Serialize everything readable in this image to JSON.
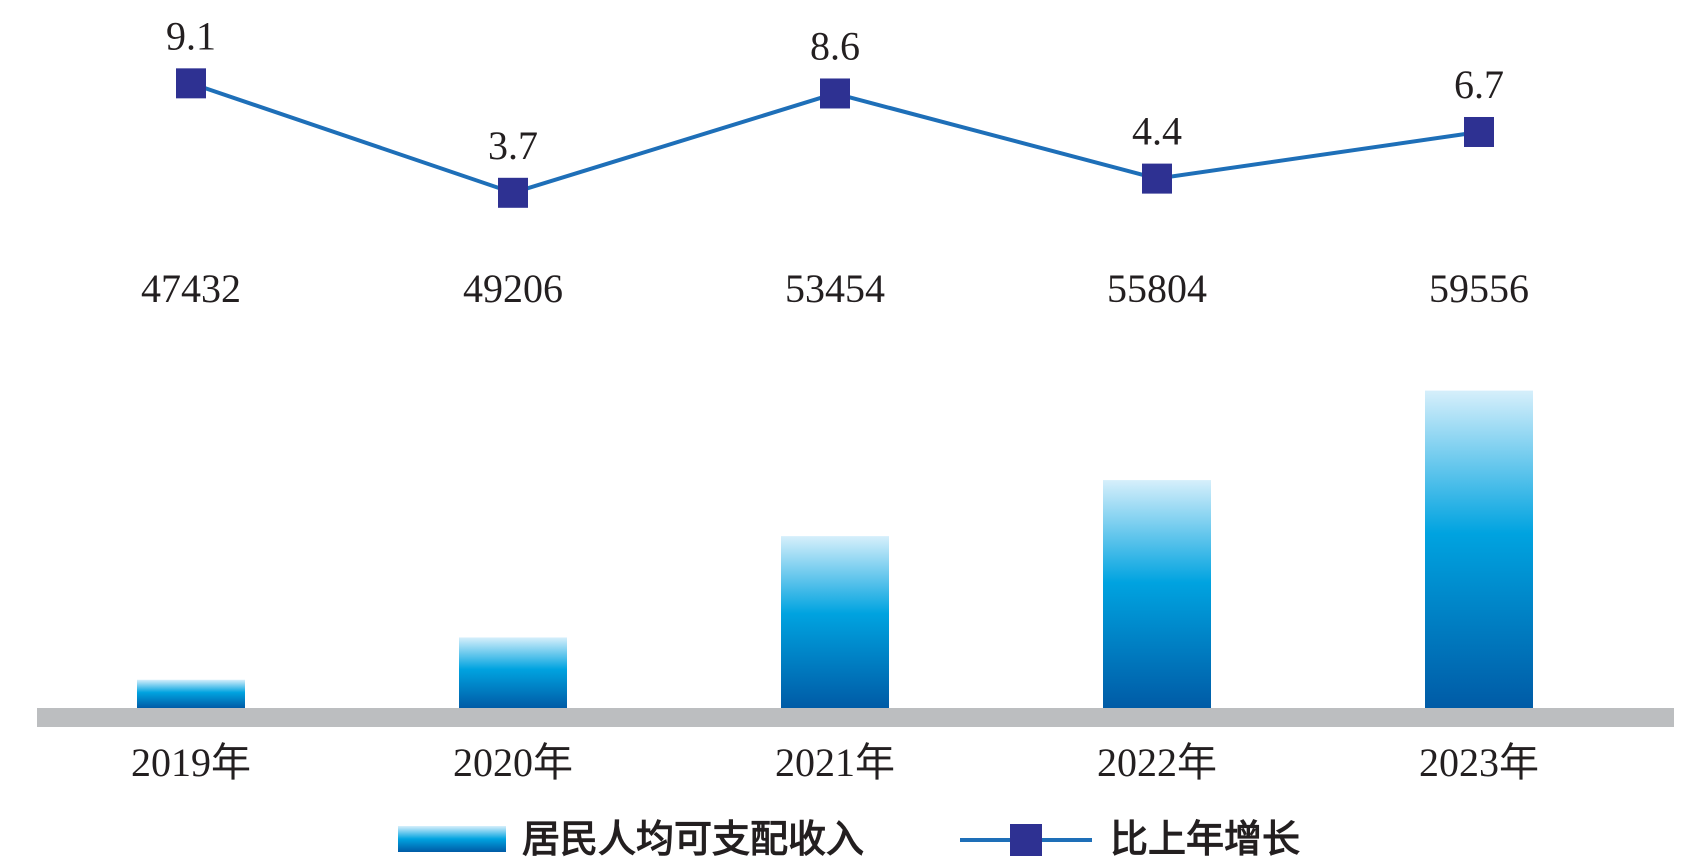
{
  "chart_data": {
    "type": "bar",
    "categories": [
      "2019年",
      "2020年",
      "2021年",
      "2022年",
      "2023年"
    ],
    "series": [
      {
        "name": "居民人均可支配收入",
        "type": "bar",
        "values": [
          47432,
          49206,
          53454,
          55804,
          59556
        ],
        "value_labels": [
          "47432",
          "49206",
          "53454",
          "55804",
          "59556"
        ]
      },
      {
        "name": "比上年增长",
        "type": "line",
        "values": [
          9.1,
          3.7,
          8.6,
          4.4,
          6.7
        ],
        "value_labels": [
          "9.1",
          "3.7",
          "8.6",
          "4.4",
          "6.7"
        ]
      }
    ],
    "title": "",
    "xlabel": "",
    "ylabel": "",
    "grid": false,
    "legend_position": "bottom",
    "colors": {
      "bar_top": "#d6effb",
      "bar_mid": "#00a3e0",
      "bar_bottom": "#005ba6",
      "line": "#1e6fb8",
      "marker": "#2e3192",
      "axis_band": "#bcbec0"
    }
  }
}
